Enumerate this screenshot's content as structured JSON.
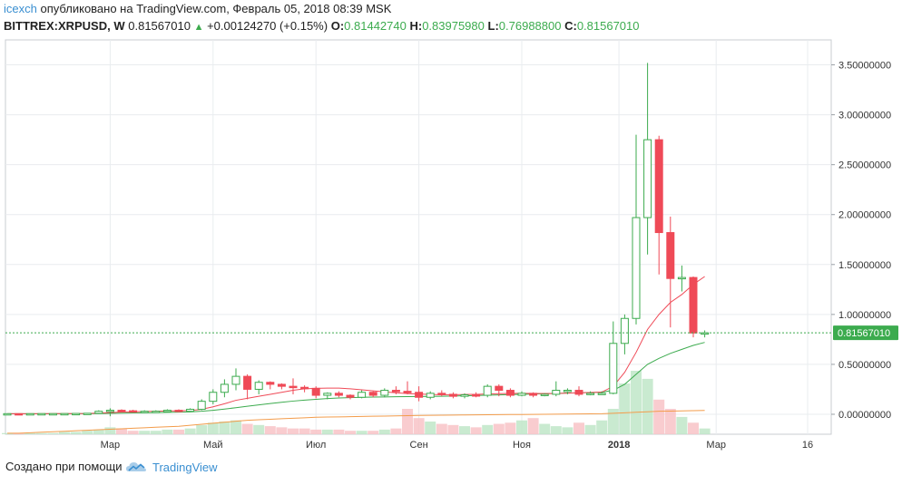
{
  "header": {
    "user": "icexch",
    "published": "опубликовано на TradingView.com, Февраль 05, 2018 08:39 MSK",
    "symbol": "BITTREX:XRPUSD, W",
    "last": "0.81567010",
    "change_arrow": "▲",
    "change": "+0.00124270 (+0.15%)",
    "o_label": "O:",
    "o_value": "0.81442740",
    "h_label": "H:",
    "h_value": "0.83975980",
    "l_label": "L:",
    "l_value": "0.76988800",
    "c_label": "C:",
    "c_value": "0.81567010"
  },
  "footer": {
    "created_with": "Создано при помощи",
    "brand": "TradingView"
  },
  "colors": {
    "up": "#3cab4e",
    "down": "#ef4a57",
    "ma_fast": "#ef4a57",
    "ma_mid": "#3cab4e",
    "ma_slow": "#f39c4b",
    "price_tag": "#3cab4e",
    "link": "#3a8fd1"
  },
  "chart_data": {
    "type": "candlestick",
    "interval": "W",
    "price_label": "0.81567010",
    "y_ticks": [
      "3.50000000",
      "3.00000000",
      "2.50000000",
      "2.00000000",
      "1.50000000",
      "1.00000000",
      "0.50000000",
      "0.00000000"
    ],
    "y_tick_values": [
      3.5,
      3.0,
      2.5,
      2.0,
      1.5,
      1.0,
      0.5,
      0.0
    ],
    "ylim": [
      -0.2,
      3.75
    ],
    "x_ticks": [
      "Мар",
      "Май",
      "Июл",
      "Сен",
      "Ноя",
      "2018",
      "Мар",
      "16"
    ],
    "x_tick_index": [
      9,
      18,
      27,
      36,
      45,
      53.5,
      62,
      70
    ],
    "grid": true,
    "ohlc": [
      [
        0.006,
        0.007,
        0.005,
        0.006
      ],
      [
        0.006,
        0.0065,
        0.005,
        0.0055
      ],
      [
        0.0055,
        0.0065,
        0.005,
        0.006
      ],
      [
        0.006,
        0.007,
        0.0055,
        0.0065
      ],
      [
        0.0065,
        0.007,
        0.006,
        0.0065
      ],
      [
        0.0065,
        0.008,
        0.006,
        0.007
      ],
      [
        0.007,
        0.009,
        0.006,
        0.008
      ],
      [
        0.008,
        0.012,
        0.007,
        0.01
      ],
      [
        0.01,
        0.04,
        0.008,
        0.03
      ],
      [
        0.03,
        0.06,
        -0.02,
        0.04
      ],
      [
        0.04,
        0.05,
        0.025,
        0.035
      ],
      [
        0.035,
        0.045,
        0.02,
        0.025
      ],
      [
        0.025,
        0.04,
        0.02,
        0.03
      ],
      [
        0.03,
        0.04,
        0.02,
        0.03
      ],
      [
        0.03,
        0.05,
        0.02,
        0.04
      ],
      [
        0.04,
        0.05,
        0.02,
        0.03
      ],
      [
        0.03,
        0.06,
        0.025,
        0.05
      ],
      [
        0.05,
        0.15,
        0.04,
        0.13
      ],
      [
        0.13,
        0.25,
        0.1,
        0.22
      ],
      [
        0.22,
        0.35,
        0.17,
        0.3
      ],
      [
        0.3,
        0.46,
        0.24,
        0.38
      ],
      [
        0.38,
        0.4,
        0.15,
        0.25
      ],
      [
        0.25,
        0.34,
        0.2,
        0.32
      ],
      [
        0.32,
        0.33,
        0.25,
        0.3
      ],
      [
        0.3,
        0.31,
        0.25,
        0.28
      ],
      [
        0.28,
        0.36,
        0.2,
        0.27
      ],
      [
        0.27,
        0.29,
        0.22,
        0.26
      ],
      [
        0.26,
        0.28,
        0.16,
        0.19
      ],
      [
        0.19,
        0.22,
        0.15,
        0.21
      ],
      [
        0.21,
        0.23,
        0.17,
        0.19
      ],
      [
        0.19,
        0.2,
        0.15,
        0.17
      ],
      [
        0.17,
        0.24,
        0.16,
        0.22
      ],
      [
        0.22,
        0.23,
        0.17,
        0.19
      ],
      [
        0.19,
        0.26,
        0.17,
        0.24
      ],
      [
        0.24,
        0.28,
        0.2,
        0.23
      ],
      [
        0.23,
        0.33,
        0.2,
        0.22
      ],
      [
        0.22,
        0.28,
        0.13,
        0.17
      ],
      [
        0.17,
        0.23,
        0.15,
        0.21
      ],
      [
        0.21,
        0.24,
        0.18,
        0.2
      ],
      [
        0.2,
        0.22,
        0.16,
        0.18
      ],
      [
        0.18,
        0.21,
        0.16,
        0.195
      ],
      [
        0.195,
        0.22,
        0.17,
        0.19
      ],
      [
        0.19,
        0.3,
        0.17,
        0.28
      ],
      [
        0.28,
        0.3,
        0.18,
        0.24
      ],
      [
        0.24,
        0.26,
        0.17,
        0.19
      ],
      [
        0.19,
        0.23,
        0.18,
        0.21
      ],
      [
        0.21,
        0.22,
        0.17,
        0.19
      ],
      [
        0.19,
        0.21,
        0.18,
        0.2
      ],
      [
        0.2,
        0.33,
        0.18,
        0.24
      ],
      [
        0.24,
        0.26,
        0.2,
        0.24
      ],
      [
        0.24,
        0.28,
        0.18,
        0.2
      ],
      [
        0.2,
        0.23,
        0.19,
        0.21
      ],
      [
        0.21,
        0.23,
        0.2,
        0.21
      ],
      [
        0.21,
        0.93,
        0.2,
        0.71
      ],
      [
        0.71,
        1.0,
        0.6,
        0.96
      ],
      [
        0.96,
        2.8,
        0.9,
        1.97
      ],
      [
        1.97,
        3.52,
        1.6,
        2.75
      ],
      [
        2.75,
        2.79,
        1.4,
        1.82
      ],
      [
        1.82,
        1.98,
        0.87,
        1.36
      ],
      [
        1.36,
        1.49,
        1.23,
        1.37
      ],
      [
        1.37,
        1.38,
        0.77,
        0.814
      ],
      [
        0.814,
        0.84,
        0.77,
        0.816
      ]
    ],
    "volume": [
      1,
      1,
      1,
      1,
      1,
      2,
      2,
      3,
      4,
      6,
      5,
      3,
      3,
      3,
      4,
      4,
      5,
      8,
      10,
      11,
      12,
      9,
      8,
      7,
      6,
      5,
      5,
      4,
      4,
      4,
      3,
      3,
      3,
      4,
      5,
      22,
      14,
      11,
      9,
      8,
      7,
      6,
      8,
      9,
      10,
      12,
      14,
      9,
      7,
      6,
      10,
      8,
      12,
      22,
      44,
      55,
      48,
      30,
      22,
      15,
      10,
      5
    ],
    "ma_fast": [
      0.006,
      0.006,
      0.006,
      0.006,
      0.0062,
      0.0065,
      0.007,
      0.008,
      0.012,
      0.017,
      0.022,
      0.025,
      0.028,
      0.03,
      0.033,
      0.035,
      0.037,
      0.05,
      0.075,
      0.105,
      0.14,
      0.16,
      0.18,
      0.2,
      0.22,
      0.24,
      0.255,
      0.26,
      0.262,
      0.262,
      0.255,
      0.245,
      0.235,
      0.225,
      0.215,
      0.208,
      0.203,
      0.198,
      0.196,
      0.196,
      0.198,
      0.2,
      0.203,
      0.206,
      0.209,
      0.21,
      0.209,
      0.208,
      0.208,
      0.212,
      0.215,
      0.218,
      0.222,
      0.28,
      0.42,
      0.62,
      0.85,
      1.0,
      1.12,
      1.2,
      1.3,
      1.38
    ],
    "ma_mid": [
      0.006,
      0.006,
      0.006,
      0.006,
      0.006,
      0.006,
      0.0062,
      0.0065,
      0.007,
      0.009,
      0.011,
      0.013,
      0.015,
      0.017,
      0.019,
      0.021,
      0.024,
      0.03,
      0.04,
      0.052,
      0.066,
      0.08,
      0.094,
      0.108,
      0.12,
      0.132,
      0.142,
      0.15,
      0.157,
      0.163,
      0.167,
      0.17,
      0.172,
      0.174,
      0.176,
      0.177,
      0.178,
      0.179,
      0.18,
      0.182,
      0.185,
      0.188,
      0.191,
      0.194,
      0.197,
      0.2,
      0.203,
      0.206,
      0.209,
      0.212,
      0.215,
      0.218,
      0.221,
      0.24,
      0.3,
      0.4,
      0.5,
      0.56,
      0.61,
      0.65,
      0.69,
      0.72
    ],
    "ma_slow": [
      -0.19,
      -0.19,
      -0.185,
      -0.18,
      -0.175,
      -0.17,
      -0.165,
      -0.16,
      -0.155,
      -0.15,
      -0.145,
      -0.14,
      -0.135,
      -0.13,
      -0.125,
      -0.12,
      -0.11,
      -0.1,
      -0.09,
      -0.08,
      -0.07,
      -0.06,
      -0.055,
      -0.05,
      -0.045,
      -0.04,
      -0.035,
      -0.03,
      -0.028,
      -0.026,
      -0.024,
      -0.022,
      -0.02,
      -0.018,
      -0.016,
      -0.014,
      -0.012,
      -0.01,
      -0.009,
      -0.008,
      -0.007,
      -0.006,
      -0.005,
      -0.004,
      -0.003,
      -0.002,
      -0.001,
      0.0,
      0.001,
      0.002,
      0.003,
      0.004,
      0.005,
      0.01,
      0.015,
      0.02,
      0.025,
      0.03,
      0.032,
      0.034,
      0.036,
      0.038
    ]
  }
}
